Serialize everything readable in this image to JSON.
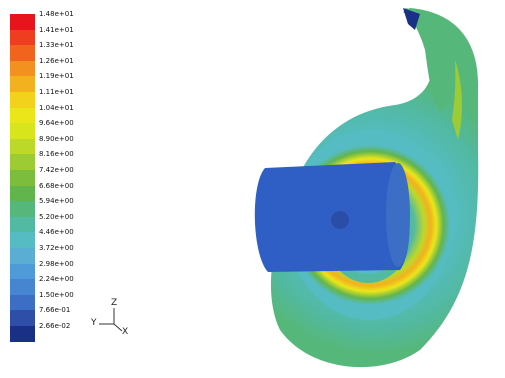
{
  "legend": {
    "labels": [
      "1.48e+01",
      "1.41e+01",
      "1.33e+01",
      "1.26e+01",
      "1.19e+01",
      "1.11e+01",
      "1.04e+01",
      "9.64e+00",
      "8.90e+00",
      "8.16e+00",
      "7.42e+00",
      "6.68e+00",
      "5.94e+00",
      "5.20e+00",
      "4.46e+00",
      "3.72e+00",
      "2.98e+00",
      "2.24e+00",
      "1.50e+00",
      "7.66e-01",
      "2.66e-02"
    ],
    "colors": [
      "#e8141c",
      "#ee3d1f",
      "#f0641e",
      "#f2911f",
      "#f3b11f",
      "#f2d21a",
      "#eae61a",
      "#d8e41c",
      "#bcd92a",
      "#9ccb34",
      "#7cbd3d",
      "#62b54d",
      "#56b77a",
      "#52b9a2",
      "#55bcc3",
      "#5aaed3",
      "#4f9ad8",
      "#4685d0",
      "#3d6ec6",
      "#2f4ea8",
      "#1a2f86"
    ]
  },
  "axes": {
    "y_label": "Y",
    "z_label": "Z",
    "x_label": "X"
  },
  "render": {
    "subject": "pump-volute-contour"
  }
}
